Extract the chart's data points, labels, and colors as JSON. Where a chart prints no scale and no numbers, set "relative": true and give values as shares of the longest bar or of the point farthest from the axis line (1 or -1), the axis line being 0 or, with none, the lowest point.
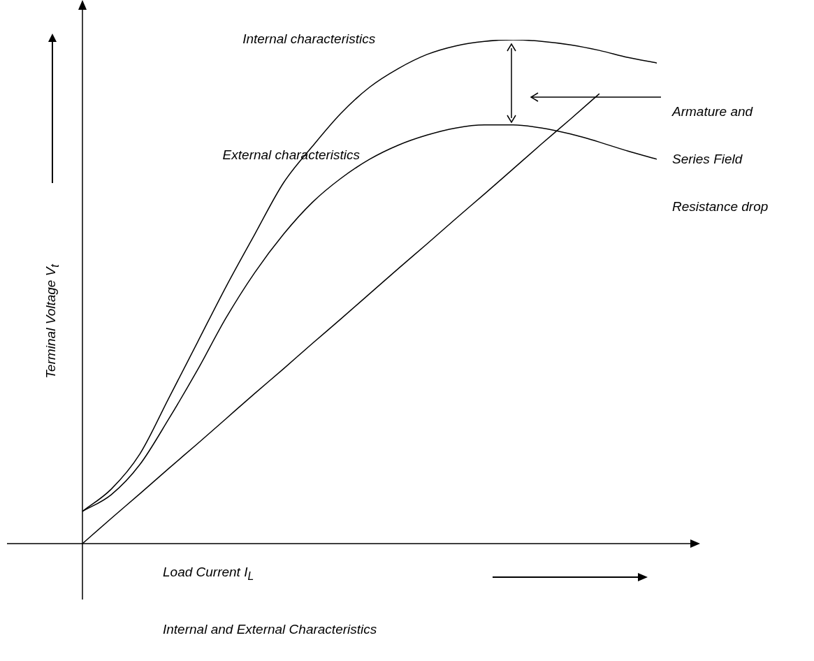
{
  "chart_data": {
    "type": "line",
    "relative": true,
    "marker": "none",
    "title": "Internal and External Characteristics",
    "xlabel": "Load Current I$_{L}$",
    "ylabel": "Terminal  Voltage V$_{t}$",
    "annotations": [
      "Armature and Series Field Resistance drop"
    ],
    "categories": [
      null,
      null,
      null,
      null,
      null,
      null,
      null,
      null,
      null,
      null,
      null,
      null,
      null,
      null,
      null,
      null,
      null,
      null,
      null,
      null,
      null
    ],
    "series": [
      {
        "name": "Internal characteristics",
        "color": "#000000",
        "values": [
          0.064,
          0.108,
          0.178,
          0.288,
          0.399,
          0.51,
          0.614,
          0.716,
          0.788,
          0.854,
          0.906,
          0.943,
          0.971,
          0.988,
          0.997,
          1.0,
          0.997,
          0.99,
          0.979,
          0.965,
          0.954
        ]
      },
      {
        "name": "External characteristics",
        "color": "#000000",
        "values": [
          0.064,
          0.097,
          0.157,
          0.247,
          0.344,
          0.448,
          0.538,
          0.614,
          0.677,
          0.725,
          0.763,
          0.791,
          0.811,
          0.825,
          0.831,
          0.831,
          0.825,
          0.813,
          0.797,
          0.779,
          0.763
        ]
      },
      {
        "color": "#000000",
        "values": [
          0,
          0.05,
          0.099,
          0.149,
          0.198,
          0.248,
          0.298,
          0.347,
          0.397,
          0.446,
          0.496,
          0.546,
          0.595,
          0.645,
          0.694,
          0.744,
          0.794,
          0.843,
          0.893,
          null,
          null
        ]
      }
    ]
  }
}
